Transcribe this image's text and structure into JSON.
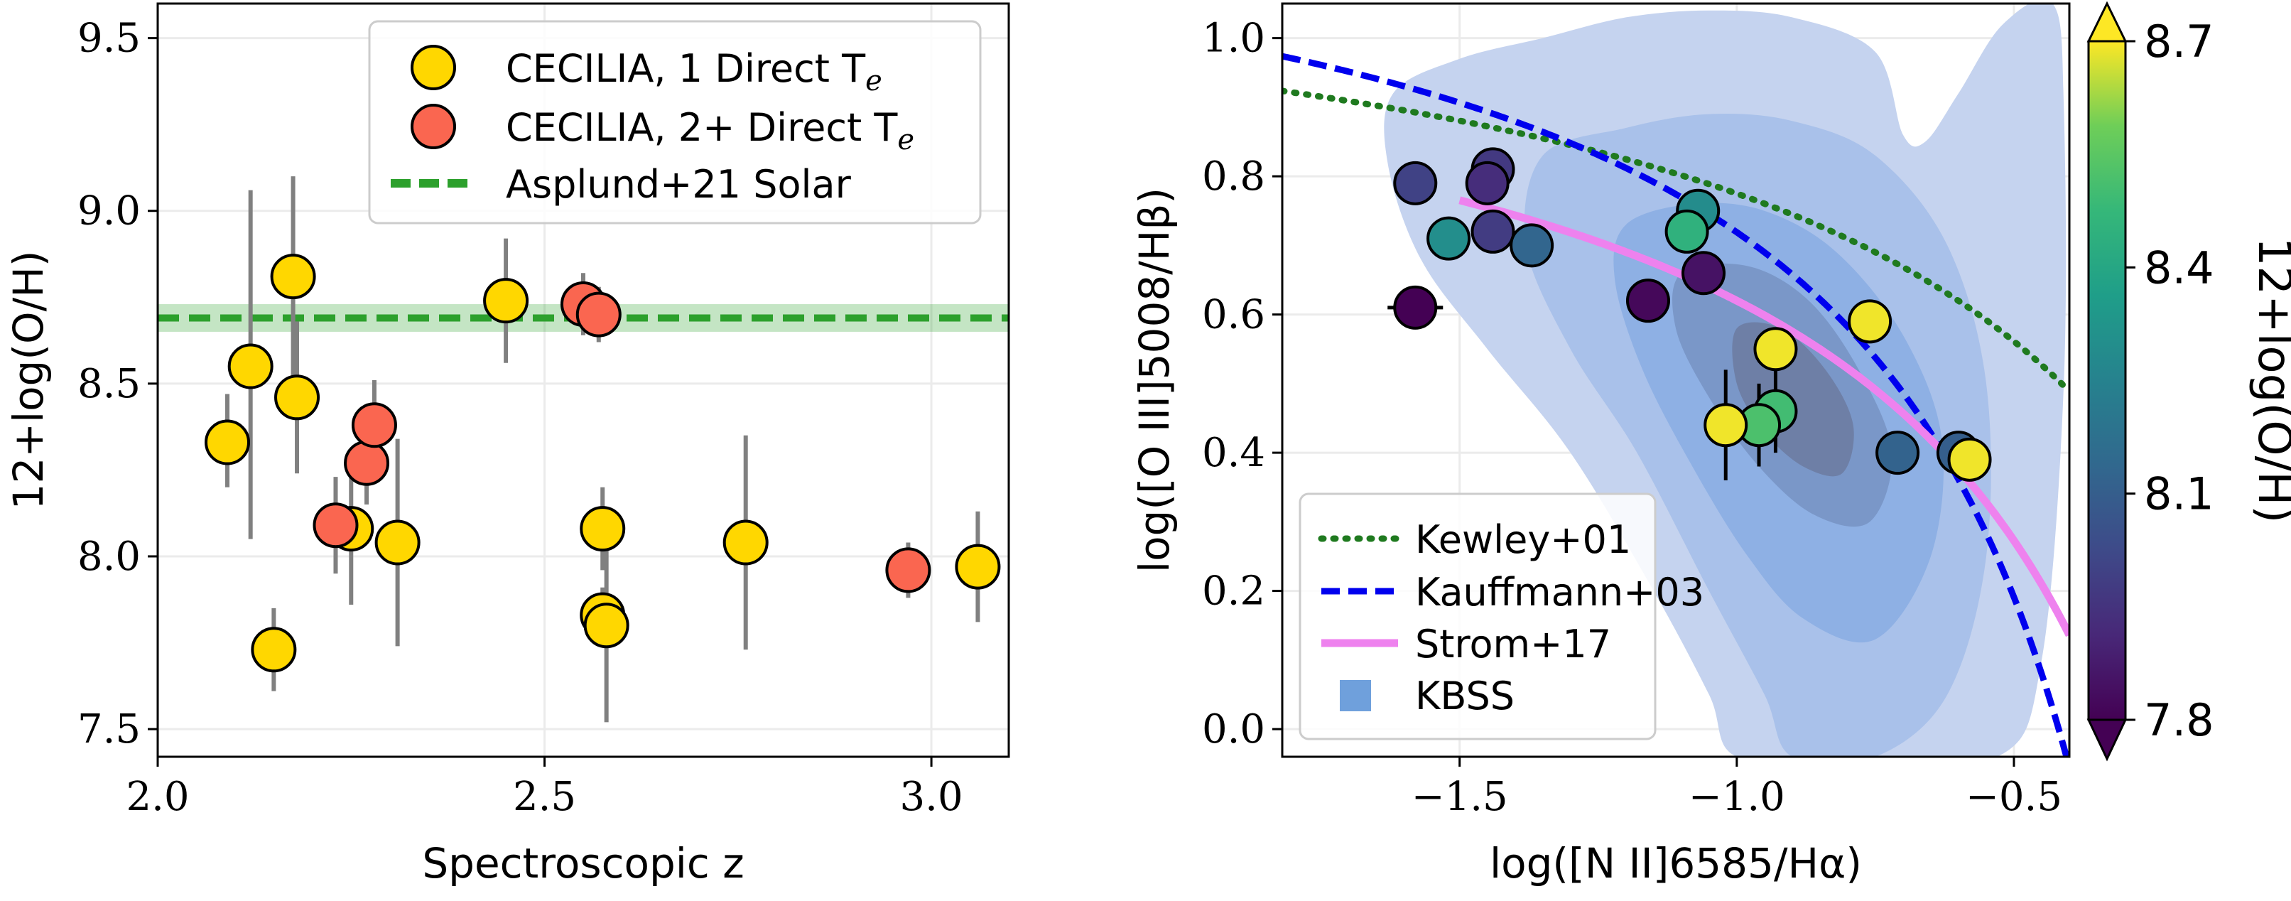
{
  "chart_data": [
    {
      "type": "scatter",
      "xlabel": "Spectroscopic z",
      "ylabel": "12+log(O/H)",
      "xlim": [
        2.0,
        3.1
      ],
      "ylim": [
        7.42,
        9.6
      ],
      "xticks": [
        "2.0",
        "2.5",
        "3.0"
      ],
      "xtick_values": [
        2.0,
        2.5,
        3.0
      ],
      "yticks": [
        "7.5",
        "8.0",
        "8.5",
        "9.0",
        "9.5"
      ],
      "ytick_values": [
        7.5,
        8.0,
        8.5,
        9.0,
        9.5
      ],
      "grid": true,
      "legend_position": "top-right",
      "reference_line": {
        "name": "Asplund+21 Solar",
        "value": 8.69,
        "band": [
          8.65,
          8.73
        ],
        "color": "#2ca02c"
      },
      "series": [
        {
          "name": "CECILIA, 1 Direct Te",
          "color": "#ffd700",
          "points": [
            {
              "z": 2.09,
              "oh": 8.33,
              "err": [
                0.13,
                0.14
              ]
            },
            {
              "z": 2.12,
              "oh": 8.55,
              "err": [
                0.5,
                0.51
              ]
            },
            {
              "z": 2.15,
              "oh": 7.73,
              "err": [
                0.12,
                0.12
              ]
            },
            {
              "z": 2.175,
              "oh": 8.81,
              "err": [
                0.29,
                0.29
              ]
            },
            {
              "z": 2.18,
              "oh": 8.46,
              "err": [
                0.22,
                0.22
              ]
            },
            {
              "z": 2.25,
              "oh": 8.08,
              "err": [
                0.22,
                0.22
              ]
            },
            {
              "z": 2.31,
              "oh": 8.04,
              "err": [
                0.3,
                0.3
              ]
            },
            {
              "z": 2.45,
              "oh": 8.74,
              "err": [
                0.18,
                0.18
              ]
            },
            {
              "z": 2.575,
              "oh": 8.08,
              "err": [
                0.12,
                0.12
              ]
            },
            {
              "z": 2.575,
              "oh": 7.83,
              "err": [
                0.08,
                0.08
              ]
            },
            {
              "z": 2.58,
              "oh": 7.8,
              "err": [
                0.28,
                0.28
              ]
            },
            {
              "z": 2.76,
              "oh": 8.04,
              "err": [
                0.31,
                0.31
              ]
            },
            {
              "z": 3.06,
              "oh": 7.97,
              "err": [
                0.16,
                0.16
              ]
            }
          ]
        },
        {
          "name": "CECILIA, 2+ Direct Te",
          "color": "#fa6650",
          "points": [
            {
              "z": 2.23,
              "oh": 8.09,
              "err": [
                0.14,
                0.14
              ]
            },
            {
              "z": 2.27,
              "oh": 8.27,
              "err": [
                0.12,
                0.12
              ]
            },
            {
              "z": 2.28,
              "oh": 8.38,
              "err": [
                0.13,
                0.13
              ]
            },
            {
              "z": 2.55,
              "oh": 8.73,
              "err": [
                0.09,
                0.09
              ]
            },
            {
              "z": 2.57,
              "oh": 8.7,
              "err": [
                0.08,
                0.08
              ]
            },
            {
              "z": 2.97,
              "oh": 7.96,
              "err": [
                0.08,
                0.08
              ]
            }
          ]
        }
      ],
      "legend": [
        "CECILIA, 1 Direct T",
        "CECILIA, 2+ Direct T",
        "Asplund+21 Solar"
      ],
      "legend_subscript": "e"
    },
    {
      "type": "scatter",
      "xlabel": "log([N II]6585/Hα)",
      "ylabel": "log([O III]5008/Hβ)",
      "xlim": [
        -1.82,
        -0.4
      ],
      "ylim": [
        -0.04,
        1.05
      ],
      "xticks": [
        "−1.5",
        "−1.0",
        "−0.5"
      ],
      "xtick_values": [
        -1.5,
        -1.0,
        -0.5
      ],
      "yticks": [
        "0.0",
        "0.2",
        "0.4",
        "0.6",
        "0.8",
        "1.0"
      ],
      "ytick_values": [
        0.0,
        0.2,
        0.4,
        0.6,
        0.8,
        1.0
      ],
      "grid": true,
      "legend_position": "bottom-left",
      "legend": [
        "Kewley+01",
        "Kauffmann+03",
        "Strom+17",
        "KBSS"
      ],
      "curves": {
        "kewley": {
          "name": "Kewley+01",
          "color": "#1f7a1f",
          "style": "dotted"
        },
        "kauffmann": {
          "name": "Kauffmann+03",
          "color": "#0000ee",
          "style": "dashed"
        },
        "strom": {
          "name": "Strom+17",
          "color": "#ee82ee",
          "style": "solid",
          "x_range": [
            -1.5,
            -0.4
          ]
        }
      },
      "kbss": {
        "name": "KBSS",
        "color": "#6fa0dc",
        "levels": [
          [
            [
              -1.62,
              0.92
            ],
            [
              -1.5,
              0.97
            ],
            [
              -1.35,
              1.0
            ],
            [
              -1.2,
              1.03
            ],
            [
              -1.05,
              1.04
            ],
            [
              -0.9,
              1.03
            ],
            [
              -0.75,
              0.98
            ],
            [
              -0.7,
              0.86
            ],
            [
              -0.66,
              0.85
            ],
            [
              -0.6,
              0.92
            ],
            [
              -0.52,
              1.02
            ],
            [
              -0.43,
              1.05
            ],
            [
              -0.41,
              0.9
            ],
            [
              -0.41,
              0.5
            ],
            [
              -0.45,
              0.1
            ],
            [
              -0.53,
              -0.04
            ],
            [
              -0.8,
              -0.04
            ],
            [
              -1.0,
              -0.04
            ],
            [
              -1.05,
              0.05
            ],
            [
              -1.15,
              0.2
            ],
            [
              -1.3,
              0.4
            ],
            [
              -1.45,
              0.55
            ],
            [
              -1.57,
              0.68
            ],
            [
              -1.63,
              0.82
            ]
          ],
          [
            [
              -1.35,
              0.83
            ],
            [
              -1.2,
              0.87
            ],
            [
              -1.05,
              0.89
            ],
            [
              -0.9,
              0.88
            ],
            [
              -0.75,
              0.83
            ],
            [
              -0.62,
              0.7
            ],
            [
              -0.55,
              0.5
            ],
            [
              -0.55,
              0.25
            ],
            [
              -0.62,
              0.05
            ],
            [
              -0.75,
              -0.04
            ],
            [
              -0.9,
              -0.04
            ],
            [
              -0.95,
              0.05
            ],
            [
              -1.05,
              0.2
            ],
            [
              -1.18,
              0.4
            ],
            [
              -1.3,
              0.55
            ],
            [
              -1.38,
              0.7
            ]
          ],
          [
            [
              -1.2,
              0.73
            ],
            [
              -1.08,
              0.76
            ],
            [
              -0.95,
              0.75
            ],
            [
              -0.82,
              0.69
            ],
            [
              -0.7,
              0.57
            ],
            [
              -0.63,
              0.42
            ],
            [
              -0.65,
              0.25
            ],
            [
              -0.75,
              0.13
            ],
            [
              -0.88,
              0.16
            ],
            [
              -0.98,
              0.25
            ],
            [
              -1.08,
              0.38
            ],
            [
              -1.17,
              0.52
            ],
            [
              -1.22,
              0.65
            ]
          ],
          [
            [
              -1.1,
              0.66
            ],
            [
              -0.98,
              0.67
            ],
            [
              -0.87,
              0.62
            ],
            [
              -0.78,
              0.52
            ],
            [
              -0.72,
              0.4
            ],
            [
              -0.76,
              0.3
            ],
            [
              -0.86,
              0.31
            ],
            [
              -0.96,
              0.38
            ],
            [
              -1.05,
              0.48
            ],
            [
              -1.11,
              0.58
            ]
          ],
          [
            [
              -1.0,
              0.58
            ],
            [
              -0.92,
              0.58
            ],
            [
              -0.84,
              0.52
            ],
            [
              -0.79,
              0.44
            ],
            [
              -0.81,
              0.37
            ],
            [
              -0.88,
              0.38
            ],
            [
              -0.95,
              0.43
            ],
            [
              -1.0,
              0.5
            ]
          ]
        ],
        "level_alphas": [
          0.35,
          0.45,
          0.55,
          0.6,
          0.55
        ]
      },
      "points": [
        {
          "x": -1.58,
          "y": 0.79,
          "oh": 8.0,
          "xerr": 0,
          "yerr": 0
        },
        {
          "x": -1.44,
          "y": 0.81,
          "oh": 7.97,
          "xerr": 0,
          "yerr": 0
        },
        {
          "x": -1.45,
          "y": 0.79,
          "oh": 7.93,
          "xerr": 0,
          "yerr": 0
        },
        {
          "x": -1.52,
          "y": 0.71,
          "oh": 8.3,
          "xerr": 0,
          "yerr": 0
        },
        {
          "x": -1.44,
          "y": 0.72,
          "oh": 7.98,
          "xerr": 0,
          "yerr": 0
        },
        {
          "x": -1.37,
          "y": 0.7,
          "oh": 8.13,
          "xerr": 0,
          "yerr": 0
        },
        {
          "x": -1.58,
          "y": 0.61,
          "oh": 7.8,
          "xerr": 0.05,
          "yerr": 0
        },
        {
          "x": -1.16,
          "y": 0.62,
          "oh": 7.82,
          "xerr": 0,
          "yerr": 0.02
        },
        {
          "x": -1.07,
          "y": 0.75,
          "oh": 8.29,
          "xerr": 0,
          "yerr": 0
        },
        {
          "x": -1.09,
          "y": 0.72,
          "oh": 8.45,
          "xerr": 0,
          "yerr": 0
        },
        {
          "x": -1.06,
          "y": 0.66,
          "oh": 7.85,
          "xerr": 0,
          "yerr": 0
        },
        {
          "x": -0.93,
          "y": 0.55,
          "oh": 8.69,
          "xerr": 0,
          "yerr": 0
        },
        {
          "x": -0.76,
          "y": 0.59,
          "oh": 8.69,
          "xerr": 0,
          "yerr": 0
        },
        {
          "x": -0.93,
          "y": 0.46,
          "oh": 8.5,
          "xerr": 0,
          "yerr": 0.06
        },
        {
          "x": -0.96,
          "y": 0.44,
          "oh": 8.52,
          "xerr": 0,
          "yerr": 0.06
        },
        {
          "x": -1.02,
          "y": 0.44,
          "oh": 8.69,
          "xerr": 0,
          "yerr": 0.08
        },
        {
          "x": -0.71,
          "y": 0.4,
          "oh": 8.12,
          "xerr": 0,
          "yerr": 0
        },
        {
          "x": -0.6,
          "y": 0.4,
          "oh": 8.1,
          "xerr": 0,
          "yerr": 0
        },
        {
          "x": -0.58,
          "y": 0.39,
          "oh": 8.69,
          "xerr": 0,
          "yerr": 0
        }
      ],
      "colorbar": {
        "label": "12+log(O/H)",
        "range": [
          7.8,
          8.7
        ],
        "ticks": [
          "7.8",
          "8.1",
          "8.4",
          "8.7"
        ],
        "tick_values": [
          7.8,
          8.1,
          8.4,
          8.7
        ],
        "colormap": "viridis",
        "extend": "both"
      }
    }
  ]
}
